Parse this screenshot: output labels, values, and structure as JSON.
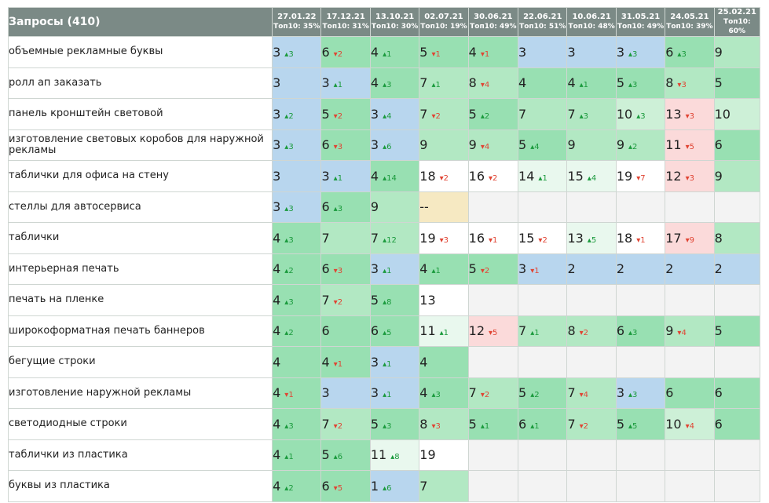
{
  "header": {
    "title": "Запросы (410)",
    "dates": [
      {
        "date": "27.01.22",
        "top": "Топ10: 35%"
      },
      {
        "date": "17.12.21",
        "top": "Топ10: 31%"
      },
      {
        "date": "13.10.21",
        "top": "Топ10: 30%"
      },
      {
        "date": "02.07.21",
        "top": "Топ10: 19%"
      },
      {
        "date": "30.06.21",
        "top": "Топ10: 49%"
      },
      {
        "date": "22.06.21",
        "top": "Топ10: 51%"
      },
      {
        "date": "10.06.21",
        "top": "Топ10: 48%"
      },
      {
        "date": "31.05.21",
        "top": "Топ10: 49%"
      },
      {
        "date": "24.05.21",
        "top": "Топ10: 39%"
      },
      {
        "date": "25.02.21",
        "top": "Топ10: 60%"
      }
    ]
  },
  "colors": {
    "blue": "#b8d6ee",
    "g1": "#98e0b2",
    "g2": "#b2e8c3",
    "g3": "#cdf0d7",
    "g4": "#e9f8ee",
    "white": "#ffffff",
    "pink": "#fbdada",
    "yellow": "#f6e9c2",
    "empty": "#f3f3f3",
    "up": "#1a9a3c",
    "down": "#e04433"
  },
  "rows": [
    {
      "query": "объемные рекламные буквы",
      "cells": [
        {
          "v": "3",
          "d": "3",
          "dir": "up",
          "bg": "blue"
        },
        {
          "v": "6",
          "d": "2",
          "dir": "down",
          "bg": "g1"
        },
        {
          "v": "4",
          "d": "1",
          "dir": "up",
          "bg": "g1"
        },
        {
          "v": "5",
          "d": "1",
          "dir": "down",
          "bg": "g1"
        },
        {
          "v": "4",
          "d": "1",
          "dir": "down",
          "bg": "g1"
        },
        {
          "v": "3",
          "d": "",
          "dir": "",
          "bg": "blue"
        },
        {
          "v": "3",
          "d": "",
          "dir": "",
          "bg": "blue"
        },
        {
          "v": "3",
          "d": "3",
          "dir": "up",
          "bg": "blue"
        },
        {
          "v": "6",
          "d": "3",
          "dir": "up",
          "bg": "g1"
        },
        {
          "v": "9",
          "d": "",
          "dir": "",
          "bg": "g2"
        }
      ]
    },
    {
      "query": "ролл ап заказать",
      "cells": [
        {
          "v": "3",
          "d": "",
          "dir": "",
          "bg": "blue"
        },
        {
          "v": "3",
          "d": "1",
          "dir": "up",
          "bg": "blue"
        },
        {
          "v": "4",
          "d": "3",
          "dir": "up",
          "bg": "g1"
        },
        {
          "v": "7",
          "d": "1",
          "dir": "up",
          "bg": "g2"
        },
        {
          "v": "8",
          "d": "4",
          "dir": "down",
          "bg": "g2"
        },
        {
          "v": "4",
          "d": "",
          "dir": "",
          "bg": "g1"
        },
        {
          "v": "4",
          "d": "1",
          "dir": "up",
          "bg": "g1"
        },
        {
          "v": "5",
          "d": "3",
          "dir": "up",
          "bg": "g1"
        },
        {
          "v": "8",
          "d": "3",
          "dir": "down",
          "bg": "g2"
        },
        {
          "v": "5",
          "d": "",
          "dir": "",
          "bg": "g1"
        }
      ]
    },
    {
      "query": "панель кронштейн световой",
      "cells": [
        {
          "v": "3",
          "d": "2",
          "dir": "up",
          "bg": "blue"
        },
        {
          "v": "5",
          "d": "2",
          "dir": "down",
          "bg": "g1"
        },
        {
          "v": "3",
          "d": "4",
          "dir": "up",
          "bg": "blue"
        },
        {
          "v": "7",
          "d": "2",
          "dir": "down",
          "bg": "g2"
        },
        {
          "v": "5",
          "d": "2",
          "dir": "up",
          "bg": "g1"
        },
        {
          "v": "7",
          "d": "",
          "dir": "",
          "bg": "g2"
        },
        {
          "v": "7",
          "d": "3",
          "dir": "up",
          "bg": "g2"
        },
        {
          "v": "10",
          "d": "3",
          "dir": "up",
          "bg": "g3"
        },
        {
          "v": "13",
          "d": "3",
          "dir": "down",
          "bg": "pink"
        },
        {
          "v": "10",
          "d": "",
          "dir": "",
          "bg": "g3"
        }
      ]
    },
    {
      "query": "изготовление световых коробов для наружной рекламы",
      "cells": [
        {
          "v": "3",
          "d": "3",
          "dir": "up",
          "bg": "blue"
        },
        {
          "v": "6",
          "d": "3",
          "dir": "down",
          "bg": "g1"
        },
        {
          "v": "3",
          "d": "6",
          "dir": "up",
          "bg": "blue"
        },
        {
          "v": "9",
          "d": "",
          "dir": "",
          "bg": "g2"
        },
        {
          "v": "9",
          "d": "4",
          "dir": "down",
          "bg": "g2"
        },
        {
          "v": "5",
          "d": "4",
          "dir": "up",
          "bg": "g1"
        },
        {
          "v": "9",
          "d": "",
          "dir": "",
          "bg": "g2"
        },
        {
          "v": "9",
          "d": "2",
          "dir": "up",
          "bg": "g2"
        },
        {
          "v": "11",
          "d": "5",
          "dir": "down",
          "bg": "pink"
        },
        {
          "v": "6",
          "d": "",
          "dir": "",
          "bg": "g1"
        }
      ]
    },
    {
      "query": "таблички для офиса на стену",
      "cells": [
        {
          "v": "3",
          "d": "",
          "dir": "",
          "bg": "blue"
        },
        {
          "v": "3",
          "d": "1",
          "dir": "up",
          "bg": "blue"
        },
        {
          "v": "4",
          "d": "14",
          "dir": "up",
          "bg": "g1"
        },
        {
          "v": "18",
          "d": "2",
          "dir": "down",
          "bg": "white"
        },
        {
          "v": "16",
          "d": "2",
          "dir": "down",
          "bg": "white"
        },
        {
          "v": "14",
          "d": "1",
          "dir": "up",
          "bg": "g4"
        },
        {
          "v": "15",
          "d": "4",
          "dir": "up",
          "bg": "g4"
        },
        {
          "v": "19",
          "d": "7",
          "dir": "down",
          "bg": "white"
        },
        {
          "v": "12",
          "d": "3",
          "dir": "down",
          "bg": "pink"
        },
        {
          "v": "9",
          "d": "",
          "dir": "",
          "bg": "g2"
        }
      ]
    },
    {
      "query": "стеллы для автосервиса",
      "cells": [
        {
          "v": "3",
          "d": "3",
          "dir": "up",
          "bg": "blue"
        },
        {
          "v": "6",
          "d": "3",
          "dir": "up",
          "bg": "g1"
        },
        {
          "v": "9",
          "d": "",
          "dir": "",
          "bg": "g2"
        },
        {
          "v": "--",
          "d": "",
          "dir": "",
          "bg": "yellow"
        },
        {
          "v": "",
          "d": "",
          "dir": "",
          "bg": "empty"
        },
        {
          "v": "",
          "d": "",
          "dir": "",
          "bg": "empty"
        },
        {
          "v": "",
          "d": "",
          "dir": "",
          "bg": "empty"
        },
        {
          "v": "",
          "d": "",
          "dir": "",
          "bg": "empty"
        },
        {
          "v": "",
          "d": "",
          "dir": "",
          "bg": "empty"
        },
        {
          "v": "",
          "d": "",
          "dir": "",
          "bg": "empty"
        }
      ]
    },
    {
      "query": "таблички",
      "cells": [
        {
          "v": "4",
          "d": "3",
          "dir": "up",
          "bg": "g1"
        },
        {
          "v": "7",
          "d": "",
          "dir": "",
          "bg": "g2"
        },
        {
          "v": "7",
          "d": "12",
          "dir": "up",
          "bg": "g2"
        },
        {
          "v": "19",
          "d": "3",
          "dir": "down",
          "bg": "white"
        },
        {
          "v": "16",
          "d": "1",
          "dir": "down",
          "bg": "white"
        },
        {
          "v": "15",
          "d": "2",
          "dir": "down",
          "bg": "white"
        },
        {
          "v": "13",
          "d": "5",
          "dir": "up",
          "bg": "g4"
        },
        {
          "v": "18",
          "d": "1",
          "dir": "down",
          "bg": "white"
        },
        {
          "v": "17",
          "d": "9",
          "dir": "down",
          "bg": "pink"
        },
        {
          "v": "8",
          "d": "",
          "dir": "",
          "bg": "g2"
        }
      ]
    },
    {
      "query": "интерьерная печать",
      "cells": [
        {
          "v": "4",
          "d": "2",
          "dir": "up",
          "bg": "g1"
        },
        {
          "v": "6",
          "d": "3",
          "dir": "down",
          "bg": "g1"
        },
        {
          "v": "3",
          "d": "1",
          "dir": "up",
          "bg": "blue"
        },
        {
          "v": "4",
          "d": "1",
          "dir": "up",
          "bg": "g1"
        },
        {
          "v": "5",
          "d": "2",
          "dir": "down",
          "bg": "g1"
        },
        {
          "v": "3",
          "d": "1",
          "dir": "down",
          "bg": "blue"
        },
        {
          "v": "2",
          "d": "",
          "dir": "",
          "bg": "blue"
        },
        {
          "v": "2",
          "d": "",
          "dir": "",
          "bg": "blue"
        },
        {
          "v": "2",
          "d": "",
          "dir": "",
          "bg": "blue"
        },
        {
          "v": "2",
          "d": "",
          "dir": "",
          "bg": "blue"
        }
      ]
    },
    {
      "query": "печать на пленке",
      "cells": [
        {
          "v": "4",
          "d": "3",
          "dir": "up",
          "bg": "g1"
        },
        {
          "v": "7",
          "d": "2",
          "dir": "down",
          "bg": "g2"
        },
        {
          "v": "5",
          "d": "8",
          "dir": "up",
          "bg": "g1"
        },
        {
          "v": "13",
          "d": "",
          "dir": "",
          "bg": "white"
        },
        {
          "v": "",
          "d": "",
          "dir": "",
          "bg": "empty"
        },
        {
          "v": "",
          "d": "",
          "dir": "",
          "bg": "empty"
        },
        {
          "v": "",
          "d": "",
          "dir": "",
          "bg": "empty"
        },
        {
          "v": "",
          "d": "",
          "dir": "",
          "bg": "empty"
        },
        {
          "v": "",
          "d": "",
          "dir": "",
          "bg": "empty"
        },
        {
          "v": "",
          "d": "",
          "dir": "",
          "bg": "empty"
        }
      ]
    },
    {
      "query": "широкоформатная печать баннеров",
      "cells": [
        {
          "v": "4",
          "d": "2",
          "dir": "up",
          "bg": "g1"
        },
        {
          "v": "6",
          "d": "",
          "dir": "",
          "bg": "g1"
        },
        {
          "v": "6",
          "d": "5",
          "dir": "up",
          "bg": "g1"
        },
        {
          "v": "11",
          "d": "1",
          "dir": "up",
          "bg": "g4"
        },
        {
          "v": "12",
          "d": "5",
          "dir": "down",
          "bg": "pink"
        },
        {
          "v": "7",
          "d": "1",
          "dir": "up",
          "bg": "g2"
        },
        {
          "v": "8",
          "d": "2",
          "dir": "down",
          "bg": "g2"
        },
        {
          "v": "6",
          "d": "3",
          "dir": "up",
          "bg": "g1"
        },
        {
          "v": "9",
          "d": "4",
          "dir": "down",
          "bg": "g2"
        },
        {
          "v": "5",
          "d": "",
          "dir": "",
          "bg": "g1"
        }
      ]
    },
    {
      "query": "бегущие строки",
      "cells": [
        {
          "v": "4",
          "d": "",
          "dir": "",
          "bg": "g1"
        },
        {
          "v": "4",
          "d": "1",
          "dir": "down",
          "bg": "g1"
        },
        {
          "v": "3",
          "d": "1",
          "dir": "up",
          "bg": "blue"
        },
        {
          "v": "4",
          "d": "",
          "dir": "",
          "bg": "g1"
        },
        {
          "v": "",
          "d": "",
          "dir": "",
          "bg": "empty"
        },
        {
          "v": "",
          "d": "",
          "dir": "",
          "bg": "empty"
        },
        {
          "v": "",
          "d": "",
          "dir": "",
          "bg": "empty"
        },
        {
          "v": "",
          "d": "",
          "dir": "",
          "bg": "empty"
        },
        {
          "v": "",
          "d": "",
          "dir": "",
          "bg": "empty"
        },
        {
          "v": "",
          "d": "",
          "dir": "",
          "bg": "empty"
        }
      ]
    },
    {
      "query": "изготовление наружной рекламы",
      "cells": [
        {
          "v": "4",
          "d": "1",
          "dir": "down",
          "bg": "g1"
        },
        {
          "v": "3",
          "d": "",
          "dir": "",
          "bg": "blue"
        },
        {
          "v": "3",
          "d": "1",
          "dir": "up",
          "bg": "blue"
        },
        {
          "v": "4",
          "d": "3",
          "dir": "up",
          "bg": "g1"
        },
        {
          "v": "7",
          "d": "2",
          "dir": "down",
          "bg": "g2"
        },
        {
          "v": "5",
          "d": "2",
          "dir": "up",
          "bg": "g1"
        },
        {
          "v": "7",
          "d": "4",
          "dir": "down",
          "bg": "g2"
        },
        {
          "v": "3",
          "d": "3",
          "dir": "up",
          "bg": "blue"
        },
        {
          "v": "6",
          "d": "",
          "dir": "",
          "bg": "g1"
        },
        {
          "v": "6",
          "d": "",
          "dir": "",
          "bg": "g1"
        }
      ]
    },
    {
      "query": "светодиодные строки",
      "cells": [
        {
          "v": "4",
          "d": "3",
          "dir": "up",
          "bg": "g1"
        },
        {
          "v": "7",
          "d": "2",
          "dir": "down",
          "bg": "g2"
        },
        {
          "v": "5",
          "d": "3",
          "dir": "up",
          "bg": "g1"
        },
        {
          "v": "8",
          "d": "3",
          "dir": "down",
          "bg": "g2"
        },
        {
          "v": "5",
          "d": "1",
          "dir": "up",
          "bg": "g1"
        },
        {
          "v": "6",
          "d": "1",
          "dir": "up",
          "bg": "g1"
        },
        {
          "v": "7",
          "d": "2",
          "dir": "down",
          "bg": "g2"
        },
        {
          "v": "5",
          "d": "5",
          "dir": "up",
          "bg": "g1"
        },
        {
          "v": "10",
          "d": "4",
          "dir": "down",
          "bg": "g3"
        },
        {
          "v": "6",
          "d": "",
          "dir": "",
          "bg": "g1"
        }
      ]
    },
    {
      "query": "таблички из пластика",
      "cells": [
        {
          "v": "4",
          "d": "1",
          "dir": "up",
          "bg": "g1"
        },
        {
          "v": "5",
          "d": "6",
          "dir": "up",
          "bg": "g1"
        },
        {
          "v": "11",
          "d": "8",
          "dir": "up",
          "bg": "g4"
        },
        {
          "v": "19",
          "d": "",
          "dir": "",
          "bg": "white"
        },
        {
          "v": "",
          "d": "",
          "dir": "",
          "bg": "empty"
        },
        {
          "v": "",
          "d": "",
          "dir": "",
          "bg": "empty"
        },
        {
          "v": "",
          "d": "",
          "dir": "",
          "bg": "empty"
        },
        {
          "v": "",
          "d": "",
          "dir": "",
          "bg": "empty"
        },
        {
          "v": "",
          "d": "",
          "dir": "",
          "bg": "empty"
        },
        {
          "v": "",
          "d": "",
          "dir": "",
          "bg": "empty"
        }
      ]
    },
    {
      "query": "буквы из пластика",
      "cells": [
        {
          "v": "4",
          "d": "2",
          "dir": "up",
          "bg": "g1"
        },
        {
          "v": "6",
          "d": "5",
          "dir": "down",
          "bg": "g1"
        },
        {
          "v": "1",
          "d": "6",
          "dir": "up",
          "bg": "blue"
        },
        {
          "v": "7",
          "d": "",
          "dir": "",
          "bg": "g2"
        },
        {
          "v": "",
          "d": "",
          "dir": "",
          "bg": "empty"
        },
        {
          "v": "",
          "d": "",
          "dir": "",
          "bg": "empty"
        },
        {
          "v": "",
          "d": "",
          "dir": "",
          "bg": "empty"
        },
        {
          "v": "",
          "d": "",
          "dir": "",
          "bg": "empty"
        },
        {
          "v": "",
          "d": "",
          "dir": "",
          "bg": "empty"
        },
        {
          "v": "",
          "d": "",
          "dir": "",
          "bg": "empty"
        }
      ]
    }
  ]
}
